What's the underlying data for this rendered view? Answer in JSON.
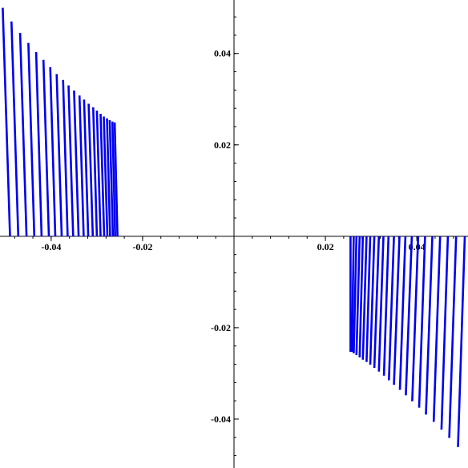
{
  "chart_data": {
    "type": "line",
    "title": "",
    "xlabel": "",
    "ylabel": "",
    "xlim": [
      -0.0512,
      0.0512
    ],
    "ylim": [
      -0.0507,
      0.0517
    ],
    "grid": false,
    "xticks": [
      {
        "value": -0.04,
        "label": "-0.04"
      },
      {
        "value": -0.02,
        "label": "-0.02"
      },
      {
        "value": 0.02,
        "label": "0.02"
      },
      {
        "value": 0.04,
        "label": "0.04"
      }
    ],
    "yticks": [
      {
        "value": 0.04,
        "label": "0.04"
      },
      {
        "value": 0.02,
        "label": "0.02"
      },
      {
        "value": -0.02,
        "label": "-0.02"
      },
      {
        "value": -0.04,
        "label": "-0.04"
      }
    ],
    "color": "#0000ee",
    "series": [
      {
        "values": [
          [
            -0.049,
            0.0
          ],
          [
            -0.0506,
            0.05
          ]
        ]
      },
      {
        "values": [
          [
            -0.0472,
            0.0
          ],
          [
            -0.0487,
            0.047
          ]
        ]
      },
      {
        "values": [
          [
            -0.0454,
            0.0
          ],
          [
            -0.0468,
            0.0445
          ]
        ]
      },
      {
        "values": [
          [
            -0.0437,
            0.0
          ],
          [
            -0.045,
            0.0423
          ]
        ]
      },
      {
        "values": [
          [
            -0.0421,
            0.0
          ],
          [
            -0.0433,
            0.0403
          ]
        ]
      },
      {
        "values": [
          [
            -0.0405,
            0.0
          ],
          [
            -0.0417,
            0.0386
          ]
        ]
      },
      {
        "values": [
          [
            -0.0391,
            0.0
          ],
          [
            -0.0402,
            0.037
          ]
        ]
      },
      {
        "values": [
          [
            -0.0377,
            0.0
          ],
          [
            -0.0388,
            0.0355
          ]
        ]
      },
      {
        "values": [
          [
            -0.0364,
            0.0
          ],
          [
            -0.0374,
            0.0342
          ]
        ]
      },
      {
        "values": [
          [
            -0.0352,
            0.0
          ],
          [
            -0.0362,
            0.033
          ]
        ]
      },
      {
        "values": [
          [
            -0.034,
            0.0
          ],
          [
            -0.035,
            0.0319
          ]
        ]
      },
      {
        "values": [
          [
            -0.0329,
            0.0
          ],
          [
            -0.0338,
            0.0308
          ]
        ]
      },
      {
        "values": [
          [
            -0.0319,
            0.0
          ],
          [
            -0.0328,
            0.0299
          ]
        ]
      },
      {
        "values": [
          [
            -0.0309,
            0.0
          ],
          [
            -0.0318,
            0.029
          ]
        ]
      },
      {
        "values": [
          [
            -0.03,
            0.0
          ],
          [
            -0.0308,
            0.0282
          ]
        ]
      },
      {
        "values": [
          [
            -0.0292,
            0.0
          ],
          [
            -0.03,
            0.0275
          ]
        ]
      },
      {
        "values": [
          [
            -0.0284,
            0.0
          ],
          [
            -0.0292,
            0.0268
          ]
        ]
      },
      {
        "values": [
          [
            -0.0277,
            0.0
          ],
          [
            -0.0285,
            0.0262
          ]
        ]
      },
      {
        "values": [
          [
            -0.0271,
            0.0
          ],
          [
            -0.0278,
            0.0258
          ]
        ]
      },
      {
        "values": [
          [
            -0.0265,
            0.0
          ],
          [
            -0.0272,
            0.0254
          ]
        ]
      },
      {
        "values": [
          [
            -0.026,
            0.0
          ],
          [
            -0.0266,
            0.0251
          ]
        ]
      },
      {
        "values": [
          [
            -0.0255,
            0.0
          ],
          [
            -0.0261,
            0.0249
          ]
        ]
      },
      {
        "values": [
          [
            0.0255,
            0.0
          ],
          [
            0.0255,
            -0.0253
          ]
        ]
      },
      {
        "values": [
          [
            0.0262,
            0.0
          ],
          [
            0.0258,
            -0.0253
          ]
        ]
      },
      {
        "values": [
          [
            0.0268,
            0.0
          ],
          [
            0.0262,
            -0.0256
          ]
        ]
      },
      {
        "values": [
          [
            0.0275,
            0.0
          ],
          [
            0.0268,
            -0.026
          ]
        ]
      },
      {
        "values": [
          [
            0.0282,
            0.0
          ],
          [
            0.0275,
            -0.0265
          ]
        ]
      },
      {
        "values": [
          [
            0.029,
            0.0
          ],
          [
            0.0282,
            -0.027
          ]
        ]
      },
      {
        "values": [
          [
            0.0298,
            0.0
          ],
          [
            0.029,
            -0.0275
          ]
        ]
      },
      {
        "values": [
          [
            0.0307,
            0.0
          ],
          [
            0.0298,
            -0.0281
          ]
        ]
      },
      {
        "values": [
          [
            0.0317,
            0.0
          ],
          [
            0.0307,
            -0.0288
          ]
        ]
      },
      {
        "values": [
          [
            0.0327,
            0.0
          ],
          [
            0.0317,
            -0.0296
          ]
        ]
      },
      {
        "values": [
          [
            0.0338,
            0.0
          ],
          [
            0.0328,
            -0.0305
          ]
        ]
      },
      {
        "values": [
          [
            0.035,
            0.0
          ],
          [
            0.0339,
            -0.0315
          ]
        ]
      },
      {
        "values": [
          [
            0.0362,
            0.0
          ],
          [
            0.035,
            -0.0325
          ]
        ]
      },
      {
        "values": [
          [
            0.0375,
            0.0
          ],
          [
            0.0363,
            -0.0336
          ]
        ]
      },
      {
        "values": [
          [
            0.0389,
            0.0
          ],
          [
            0.0376,
            -0.0348
          ]
        ]
      },
      {
        "values": [
          [
            0.0403,
            0.0
          ],
          [
            0.039,
            -0.0361
          ]
        ]
      },
      {
        "values": [
          [
            0.0418,
            0.0
          ],
          [
            0.0405,
            -0.0375
          ]
        ]
      },
      {
        "values": [
          [
            0.0434,
            0.0
          ],
          [
            0.042,
            -0.039
          ]
        ]
      },
      {
        "values": [
          [
            0.0451,
            0.0
          ],
          [
            0.0437,
            -0.0406
          ]
        ]
      },
      {
        "values": [
          [
            0.0468,
            0.0
          ],
          [
            0.0454,
            -0.0423
          ]
        ]
      },
      {
        "values": [
          [
            0.0486,
            0.0
          ],
          [
            0.0471,
            -0.0441
          ]
        ]
      },
      {
        "values": [
          [
            0.0505,
            0.0
          ],
          [
            0.049,
            -0.0461
          ]
        ]
      }
    ]
  }
}
